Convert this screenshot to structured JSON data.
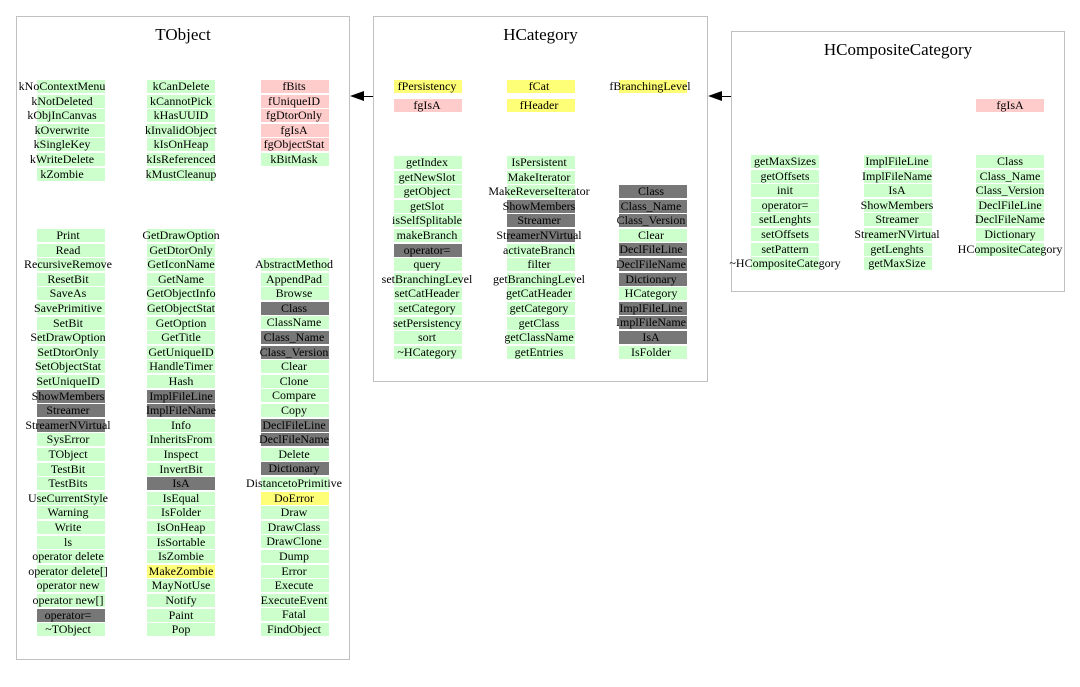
{
  "classes": {
    "tobject": {
      "title": "TObject",
      "groups": [
        {
          "items": [
            {
              "t": "kNoContextMenu",
              "c": "green"
            },
            {
              "t": "kNotDeleted",
              "c": "green"
            },
            {
              "t": "kObjInCanvas",
              "c": "green"
            },
            {
              "t": "kOverwrite",
              "c": "green"
            },
            {
              "t": "kSingleKey",
              "c": "green"
            },
            {
              "t": "kWriteDelete",
              "c": "green"
            },
            {
              "t": "kZombie",
              "c": "green"
            }
          ]
        },
        {
          "items": [
            {
              "t": "kCanDelete",
              "c": "green"
            },
            {
              "t": "kCannotPick",
              "c": "green"
            },
            {
              "t": "kHasUUID",
              "c": "green"
            },
            {
              "t": "kInvalidObject",
              "c": "green"
            },
            {
              "t": "kIsOnHeap",
              "c": "green"
            },
            {
              "t": "kIsReferenced",
              "c": "green"
            },
            {
              "t": "kMustCleanup",
              "c": "green"
            }
          ]
        },
        {
          "items": [
            {
              "t": "fBits",
              "c": "pink"
            },
            {
              "t": "fUniqueID",
              "c": "pink"
            },
            {
              "t": "fgDtorOnly",
              "c": "pink"
            },
            {
              "t": "fgIsA",
              "c": "pink"
            },
            {
              "t": "fgObjectStat",
              "c": "pink"
            },
            {
              "t": "kBitMask",
              "c": "green"
            }
          ]
        },
        {
          "items": [
            {
              "t": "Print",
              "c": "green"
            },
            {
              "t": "Read",
              "c": "green"
            },
            {
              "t": "RecursiveRemove",
              "c": "green"
            },
            {
              "t": "ResetBit",
              "c": "green"
            },
            {
              "t": "SaveAs",
              "c": "green"
            },
            {
              "t": "SavePrimitive",
              "c": "green"
            },
            {
              "t": "SetBit",
              "c": "green"
            },
            {
              "t": "SetDrawOption",
              "c": "green"
            },
            {
              "t": "SetDtorOnly",
              "c": "green"
            },
            {
              "t": "SetObjectStat",
              "c": "green"
            },
            {
              "t": "SetUniqueID",
              "c": "green"
            },
            {
              "t": "ShowMembers",
              "c": "gray"
            },
            {
              "t": "Streamer",
              "c": "gray"
            },
            {
              "t": "StreamerNVirtual",
              "c": "gray"
            },
            {
              "t": "SysError",
              "c": "green"
            },
            {
              "t": "TObject",
              "c": "green"
            },
            {
              "t": "TestBit",
              "c": "green"
            },
            {
              "t": "TestBits",
              "c": "green"
            },
            {
              "t": "UseCurrentStyle",
              "c": "green"
            },
            {
              "t": "Warning",
              "c": "green"
            },
            {
              "t": "Write",
              "c": "green"
            },
            {
              "t": "ls",
              "c": "green"
            },
            {
              "t": "operator delete",
              "c": "green"
            },
            {
              "t": "operator delete[]",
              "c": "green"
            },
            {
              "t": "operator new",
              "c": "green"
            },
            {
              "t": "operator new[]",
              "c": "green"
            },
            {
              "t": "operator=",
              "c": "gray"
            },
            {
              "t": "~TObject",
              "c": "green"
            }
          ]
        },
        {
          "items": [
            {
              "t": "GetDrawOption",
              "c": "green"
            },
            {
              "t": "GetDtorOnly",
              "c": "green"
            },
            {
              "t": "GetIconName",
              "c": "green"
            },
            {
              "t": "GetName",
              "c": "green"
            },
            {
              "t": "GetObjectInfo",
              "c": "green"
            },
            {
              "t": "GetObjectStat",
              "c": "green"
            },
            {
              "t": "GetOption",
              "c": "green"
            },
            {
              "t": "GetTitle",
              "c": "green"
            },
            {
              "t": "GetUniqueID",
              "c": "green"
            },
            {
              "t": "HandleTimer",
              "c": "green"
            },
            {
              "t": "Hash",
              "c": "green"
            },
            {
              "t": "ImplFileLine",
              "c": "gray"
            },
            {
              "t": "ImplFileName",
              "c": "gray"
            },
            {
              "t": "Info",
              "c": "green"
            },
            {
              "t": "InheritsFrom",
              "c": "green"
            },
            {
              "t": "Inspect",
              "c": "green"
            },
            {
              "t": "InvertBit",
              "c": "green"
            },
            {
              "t": "IsA",
              "c": "gray"
            },
            {
              "t": "IsEqual",
              "c": "green"
            },
            {
              "t": "IsFolder",
              "c": "green"
            },
            {
              "t": "IsOnHeap",
              "c": "green"
            },
            {
              "t": "IsSortable",
              "c": "green"
            },
            {
              "t": "IsZombie",
              "c": "green"
            },
            {
              "t": "MakeZombie",
              "c": "yellow"
            },
            {
              "t": "MayNotUse",
              "c": "green"
            },
            {
              "t": "Notify",
              "c": "green"
            },
            {
              "t": "Paint",
              "c": "green"
            },
            {
              "t": "Pop",
              "c": "green"
            }
          ]
        },
        {
          "items": [
            {
              "t": "AbstractMethod",
              "c": "green"
            },
            {
              "t": "AppendPad",
              "c": "green"
            },
            {
              "t": "Browse",
              "c": "green"
            },
            {
              "t": "Class",
              "c": "gray"
            },
            {
              "t": "ClassName",
              "c": "green"
            },
            {
              "t": "Class_Name",
              "c": "gray"
            },
            {
              "t": "Class_Version",
              "c": "gray"
            },
            {
              "t": "Clear",
              "c": "green"
            },
            {
              "t": "Clone",
              "c": "green"
            },
            {
              "t": "Compare",
              "c": "green"
            },
            {
              "t": "Copy",
              "c": "green"
            },
            {
              "t": "DeclFileLine",
              "c": "gray"
            },
            {
              "t": "DeclFileName",
              "c": "gray"
            },
            {
              "t": "Delete",
              "c": "green"
            },
            {
              "t": "Dictionary",
              "c": "gray"
            },
            {
              "t": "DistancetoPrimitive",
              "c": "green"
            },
            {
              "t": "DoError",
              "c": "yellow"
            },
            {
              "t": "Draw",
              "c": "green"
            },
            {
              "t": "DrawClass",
              "c": "green"
            },
            {
              "t": "DrawClone",
              "c": "green"
            },
            {
              "t": "Dump",
              "c": "green"
            },
            {
              "t": "Error",
              "c": "green"
            },
            {
              "t": "Execute",
              "c": "green"
            },
            {
              "t": "ExecuteEvent",
              "c": "green"
            },
            {
              "t": "Fatal",
              "c": "green"
            },
            {
              "t": "FindObject",
              "c": "green"
            }
          ]
        }
      ]
    },
    "hcategory": {
      "title": "HCategory",
      "groups": [
        {
          "items": [
            {
              "t": "fPersistency",
              "c": "yellow"
            },
            {
              "t": "fgIsA",
              "c": "pink"
            }
          ]
        },
        {
          "items": [
            {
              "t": "fCat",
              "c": "yellow"
            },
            {
              "t": "fHeader",
              "c": "yellow"
            }
          ]
        },
        {
          "items": [
            {
              "t": "fBranchingLevel",
              "c": "yellow"
            }
          ]
        },
        {
          "items": [
            {
              "t": "getIndex",
              "c": "green"
            },
            {
              "t": "getNewSlot",
              "c": "green"
            },
            {
              "t": "getObject",
              "c": "green"
            },
            {
              "t": "getSlot",
              "c": "green"
            },
            {
              "t": "isSelfSplitable",
              "c": "green"
            },
            {
              "t": "makeBranch",
              "c": "green"
            },
            {
              "t": "operator=",
              "c": "gray"
            },
            {
              "t": "query",
              "c": "green"
            },
            {
              "t": "setBranchingLevel",
              "c": "green"
            },
            {
              "t": "setCatHeader",
              "c": "green"
            },
            {
              "t": "setCategory",
              "c": "green"
            },
            {
              "t": "setPersistency",
              "c": "green"
            },
            {
              "t": "sort",
              "c": "green"
            },
            {
              "t": "~HCategory",
              "c": "green"
            }
          ]
        },
        {
          "items": [
            {
              "t": "IsPersistent",
              "c": "green"
            },
            {
              "t": "MakeIterator",
              "c": "green"
            },
            {
              "t": "MakeReverseIterator",
              "c": "green"
            },
            {
              "t": "ShowMembers",
              "c": "gray"
            },
            {
              "t": "Streamer",
              "c": "gray"
            },
            {
              "t": "StreamerNVirtual",
              "c": "gray"
            },
            {
              "t": "activateBranch",
              "c": "green"
            },
            {
              "t": "filter",
              "c": "green"
            },
            {
              "t": "getBranchingLevel",
              "c": "green"
            },
            {
              "t": "getCatHeader",
              "c": "green"
            },
            {
              "t": "getCategory",
              "c": "green"
            },
            {
              "t": "getClass",
              "c": "green"
            },
            {
              "t": "getClassName",
              "c": "green"
            },
            {
              "t": "getEntries",
              "c": "green"
            }
          ]
        },
        {
          "items": [
            {
              "t": "Class",
              "c": "gray"
            },
            {
              "t": "Class_Name",
              "c": "gray"
            },
            {
              "t": "Class_Version",
              "c": "gray"
            },
            {
              "t": "Clear",
              "c": "green"
            },
            {
              "t": "DeclFileLine",
              "c": "gray"
            },
            {
              "t": "DeclFileName",
              "c": "gray"
            },
            {
              "t": "Dictionary",
              "c": "gray"
            },
            {
              "t": "HCategory",
              "c": "green"
            },
            {
              "t": "ImplFileLine",
              "c": "gray"
            },
            {
              "t": "ImplFileName",
              "c": "gray"
            },
            {
              "t": "IsA",
              "c": "gray"
            },
            {
              "t": "IsFolder",
              "c": "green"
            }
          ]
        }
      ]
    },
    "hcomposite": {
      "title": "HCompositeCategory",
      "groups": [
        {
          "items": [
            {
              "t": "fgIsA",
              "c": "pink"
            }
          ]
        },
        {
          "items": [
            {
              "t": "getMaxSizes",
              "c": "green"
            },
            {
              "t": "getOffsets",
              "c": "green"
            },
            {
              "t": "init",
              "c": "green"
            },
            {
              "t": "operator=",
              "c": "green"
            },
            {
              "t": "setLenghts",
              "c": "green"
            },
            {
              "t": "setOffsets",
              "c": "green"
            },
            {
              "t": "setPattern",
              "c": "green"
            },
            {
              "t": "~HCompositeCategory",
              "c": "green"
            }
          ]
        },
        {
          "items": [
            {
              "t": "ImplFileLine",
              "c": "green"
            },
            {
              "t": "ImplFileName",
              "c": "green"
            },
            {
              "t": "IsA",
              "c": "green"
            },
            {
              "t": "ShowMembers",
              "c": "green"
            },
            {
              "t": "Streamer",
              "c": "green"
            },
            {
              "t": "StreamerNVirtual",
              "c": "green"
            },
            {
              "t": "getLenghts",
              "c": "green"
            },
            {
              "t": "getMaxSize",
              "c": "green"
            }
          ]
        },
        {
          "items": [
            {
              "t": "Class",
              "c": "green"
            },
            {
              "t": "Class_Name",
              "c": "green"
            },
            {
              "t": "Class_Version",
              "c": "green"
            },
            {
              "t": "DeclFileLine",
              "c": "green"
            },
            {
              "t": "DeclFileName",
              "c": "green"
            },
            {
              "t": "Dictionary",
              "c": "green"
            },
            {
              "t": "HCompositeCategory",
              "c": "green"
            }
          ]
        }
      ]
    }
  },
  "colors": {
    "green": "#ccffcc",
    "pink": "#ffcccc",
    "yellow": "#ffff77",
    "gray": "#777777",
    "panel_border": "#c0c0c0"
  }
}
